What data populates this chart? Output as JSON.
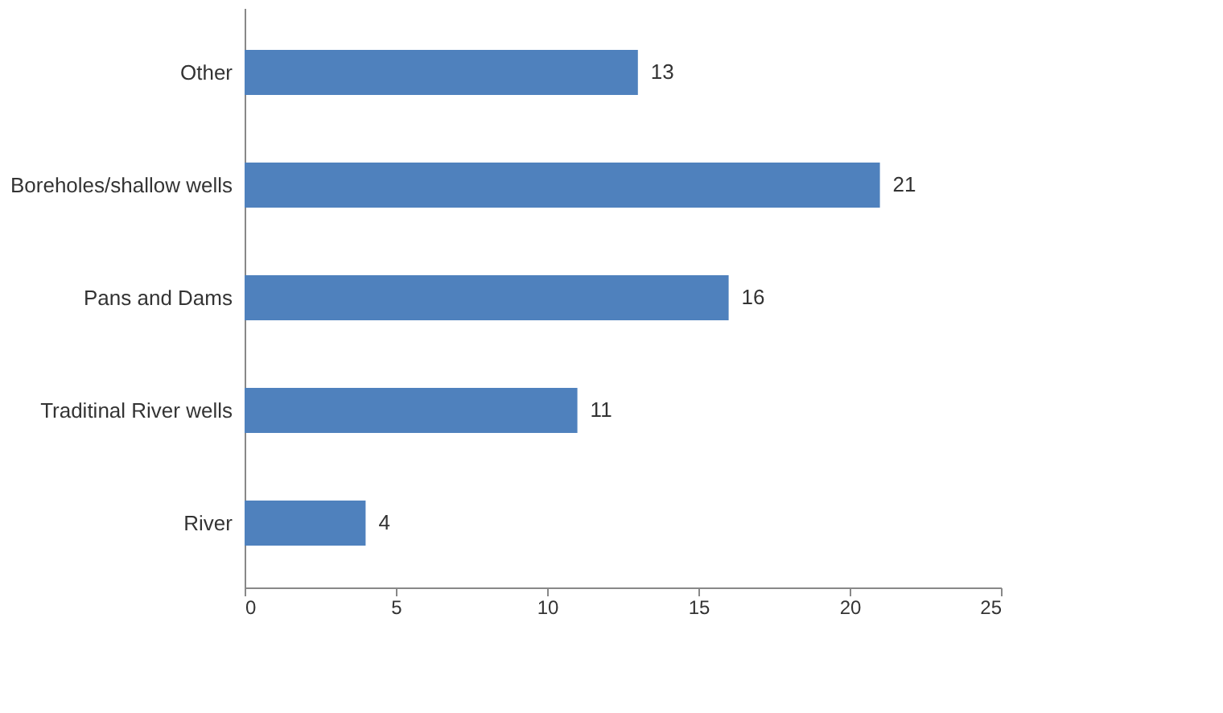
{
  "chart_data": {
    "type": "bar",
    "orientation": "horizontal",
    "categories": [
      "Other",
      "Boreholes/shallow wells",
      "Pans and Dams",
      "Traditinal River wells",
      "River"
    ],
    "values": [
      13,
      21,
      16,
      11,
      4
    ],
    "color": "#4f81bd",
    "xlim": [
      0,
      25
    ],
    "xticks": [
      0,
      5,
      10,
      15,
      20,
      25
    ],
    "grid": false,
    "data_labels": true
  }
}
